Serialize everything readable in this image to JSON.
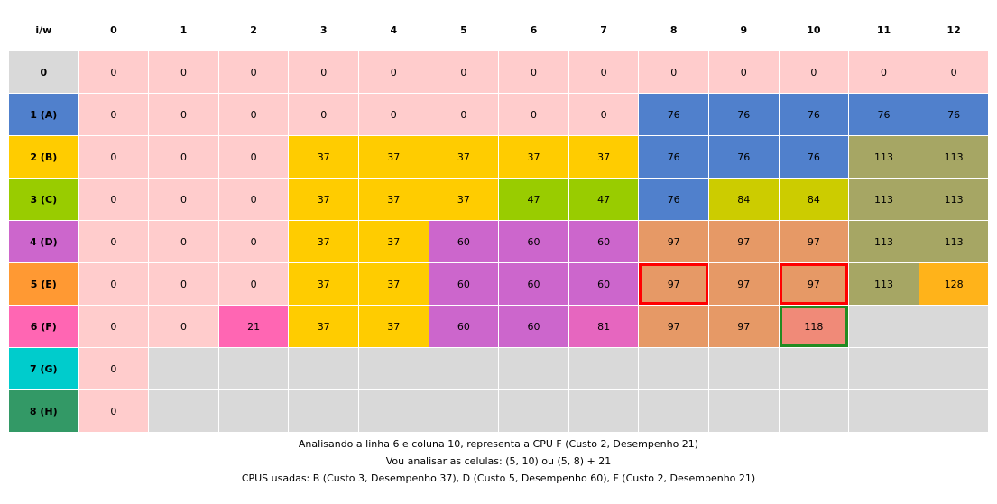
{
  "table": {
    "corner_label": "i/w",
    "col_headers": [
      "0",
      "1",
      "2",
      "3",
      "4",
      "5",
      "6",
      "7",
      "8",
      "9",
      "10",
      "11",
      "12"
    ],
    "rows": [
      {
        "label": "0",
        "color": "#d9d9d9",
        "cells": [
          {
            "v": "0",
            "c": "#ffcccc"
          },
          {
            "v": "0",
            "c": "#ffcccc"
          },
          {
            "v": "0",
            "c": "#ffcccc"
          },
          {
            "v": "0",
            "c": "#ffcccc"
          },
          {
            "v": "0",
            "c": "#ffcccc"
          },
          {
            "v": "0",
            "c": "#ffcccc"
          },
          {
            "v": "0",
            "c": "#ffcccc"
          },
          {
            "v": "0",
            "c": "#ffcccc"
          },
          {
            "v": "0",
            "c": "#ffcccc"
          },
          {
            "v": "0",
            "c": "#ffcccc"
          },
          {
            "v": "0",
            "c": "#ffcccc"
          },
          {
            "v": "0",
            "c": "#ffcccc"
          },
          {
            "v": "0",
            "c": "#ffcccc"
          }
        ]
      },
      {
        "label": "1 (A)",
        "color": "#5080cc",
        "cells": [
          {
            "v": "0",
            "c": "#ffcccc"
          },
          {
            "v": "0",
            "c": "#ffcccc"
          },
          {
            "v": "0",
            "c": "#ffcccc"
          },
          {
            "v": "0",
            "c": "#ffcccc"
          },
          {
            "v": "0",
            "c": "#ffcccc"
          },
          {
            "v": "0",
            "c": "#ffcccc"
          },
          {
            "v": "0",
            "c": "#ffcccc"
          },
          {
            "v": "0",
            "c": "#ffcccc"
          },
          {
            "v": "76",
            "c": "#5080cc"
          },
          {
            "v": "76",
            "c": "#5080cc"
          },
          {
            "v": "76",
            "c": "#5080cc"
          },
          {
            "v": "76",
            "c": "#5080cc"
          },
          {
            "v": "76",
            "c": "#5080cc"
          }
        ]
      },
      {
        "label": "2 (B)",
        "color": "#ffcc00",
        "cells": [
          {
            "v": "0",
            "c": "#ffcccc"
          },
          {
            "v": "0",
            "c": "#ffcccc"
          },
          {
            "v": "0",
            "c": "#ffcccc"
          },
          {
            "v": "37",
            "c": "#ffcc00"
          },
          {
            "v": "37",
            "c": "#ffcc00"
          },
          {
            "v": "37",
            "c": "#ffcc00"
          },
          {
            "v": "37",
            "c": "#ffcc00"
          },
          {
            "v": "37",
            "c": "#ffcc00"
          },
          {
            "v": "76",
            "c": "#5080cc"
          },
          {
            "v": "76",
            "c": "#5080cc"
          },
          {
            "v": "76",
            "c": "#5080cc"
          },
          {
            "v": "113",
            "c": "#a6a664"
          },
          {
            "v": "113",
            "c": "#a6a664"
          }
        ]
      },
      {
        "label": "3 (C)",
        "color": "#99cc00",
        "cells": [
          {
            "v": "0",
            "c": "#ffcccc"
          },
          {
            "v": "0",
            "c": "#ffcccc"
          },
          {
            "v": "0",
            "c": "#ffcccc"
          },
          {
            "v": "37",
            "c": "#ffcc00"
          },
          {
            "v": "37",
            "c": "#ffcc00"
          },
          {
            "v": "37",
            "c": "#ffcc00"
          },
          {
            "v": "47",
            "c": "#99cc00"
          },
          {
            "v": "47",
            "c": "#99cc00"
          },
          {
            "v": "76",
            "c": "#5080cc"
          },
          {
            "v": "84",
            "c": "#cccc00"
          },
          {
            "v": "84",
            "c": "#cccc00"
          },
          {
            "v": "113",
            "c": "#a6a664"
          },
          {
            "v": "113",
            "c": "#a6a664"
          }
        ]
      },
      {
        "label": "4 (D)",
        "color": "#cc66cc",
        "cells": [
          {
            "v": "0",
            "c": "#ffcccc"
          },
          {
            "v": "0",
            "c": "#ffcccc"
          },
          {
            "v": "0",
            "c": "#ffcccc"
          },
          {
            "v": "37",
            "c": "#ffcc00"
          },
          {
            "v": "37",
            "c": "#ffcc00"
          },
          {
            "v": "60",
            "c": "#cc66cc"
          },
          {
            "v": "60",
            "c": "#cc66cc"
          },
          {
            "v": "60",
            "c": "#cc66cc"
          },
          {
            "v": "97",
            "c": "#e69966"
          },
          {
            "v": "97",
            "c": "#e69966"
          },
          {
            "v": "97",
            "c": "#e69966"
          },
          {
            "v": "113",
            "c": "#a6a664"
          },
          {
            "v": "113",
            "c": "#a6a664"
          }
        ]
      },
      {
        "label": "5 (E)",
        "color": "#ff9933",
        "cells": [
          {
            "v": "0",
            "c": "#ffcccc"
          },
          {
            "v": "0",
            "c": "#ffcccc"
          },
          {
            "v": "0",
            "c": "#ffcccc"
          },
          {
            "v": "37",
            "c": "#ffcc00"
          },
          {
            "v": "37",
            "c": "#ffcc00"
          },
          {
            "v": "60",
            "c": "#cc66cc"
          },
          {
            "v": "60",
            "c": "#cc66cc"
          },
          {
            "v": "60",
            "c": "#cc66cc"
          },
          {
            "v": "97",
            "c": "#e69966"
          },
          {
            "v": "97",
            "c": "#e69966"
          },
          {
            "v": "97",
            "c": "#e69966"
          },
          {
            "v": "113",
            "c": "#a6a664"
          },
          {
            "v": "128",
            "c": "#ffb31a"
          }
        ]
      },
      {
        "label": "6 (F)",
        "color": "#ff66b3",
        "cells": [
          {
            "v": "0",
            "c": "#ffcccc"
          },
          {
            "v": "0",
            "c": "#ffcccc"
          },
          {
            "v": "21",
            "c": "#ff66b3"
          },
          {
            "v": "37",
            "c": "#ffcc00"
          },
          {
            "v": "37",
            "c": "#ffcc00"
          },
          {
            "v": "60",
            "c": "#cc66cc"
          },
          {
            "v": "60",
            "c": "#cc66cc"
          },
          {
            "v": "81",
            "c": "#e666bf"
          },
          {
            "v": "97",
            "c": "#e69966"
          },
          {
            "v": "97",
            "c": "#e69966"
          },
          {
            "v": "118",
            "c": "#f08a78"
          },
          {
            "v": "",
            "c": "#d9d9d9"
          },
          {
            "v": "",
            "c": "#d9d9d9"
          }
        ]
      },
      {
        "label": "7 (G)",
        "color": "#00cccc",
        "cells": [
          {
            "v": "0",
            "c": "#ffcccc"
          },
          {
            "v": "",
            "c": "#d9d9d9"
          },
          {
            "v": "",
            "c": "#d9d9d9"
          },
          {
            "v": "",
            "c": "#d9d9d9"
          },
          {
            "v": "",
            "c": "#d9d9d9"
          },
          {
            "v": "",
            "c": "#d9d9d9"
          },
          {
            "v": "",
            "c": "#d9d9d9"
          },
          {
            "v": "",
            "c": "#d9d9d9"
          },
          {
            "v": "",
            "c": "#d9d9d9"
          },
          {
            "v": "",
            "c": "#d9d9d9"
          },
          {
            "v": "",
            "c": "#d9d9d9"
          },
          {
            "v": "",
            "c": "#d9d9d9"
          },
          {
            "v": "",
            "c": "#d9d9d9"
          }
        ]
      },
      {
        "label": "8 (H)",
        "color": "#339966",
        "cells": [
          {
            "v": "0",
            "c": "#ffcccc"
          },
          {
            "v": "",
            "c": "#d9d9d9"
          },
          {
            "v": "",
            "c": "#d9d9d9"
          },
          {
            "v": "",
            "c": "#d9d9d9"
          },
          {
            "v": "",
            "c": "#d9d9d9"
          },
          {
            "v": "",
            "c": "#d9d9d9"
          },
          {
            "v": "",
            "c": "#d9d9d9"
          },
          {
            "v": "",
            "c": "#d9d9d9"
          },
          {
            "v": "",
            "c": "#d9d9d9"
          },
          {
            "v": "",
            "c": "#d9d9d9"
          },
          {
            "v": "",
            "c": "#d9d9d9"
          },
          {
            "v": "",
            "c": "#d9d9d9"
          },
          {
            "v": "",
            "c": "#d9d9d9"
          }
        ]
      }
    ],
    "highlights": [
      {
        "row": 5,
        "col": 8,
        "color": "#ff0000"
      },
      {
        "row": 5,
        "col": 10,
        "color": "#ff0000"
      },
      {
        "row": 6,
        "col": 10,
        "color": "#228b22"
      }
    ]
  },
  "captions": [
    "Analisando a linha 6 e coluna 10, representa a CPU F (Custo 2, Desempenho 21)",
    "Vou analisar as celulas: (5, 10) ou (5, 8) + 21",
    "CPUS usadas: B (Custo 3, Desempenho 37), D (Custo 5, Desempenho 60), F (Custo 2, Desempenho 21)"
  ]
}
